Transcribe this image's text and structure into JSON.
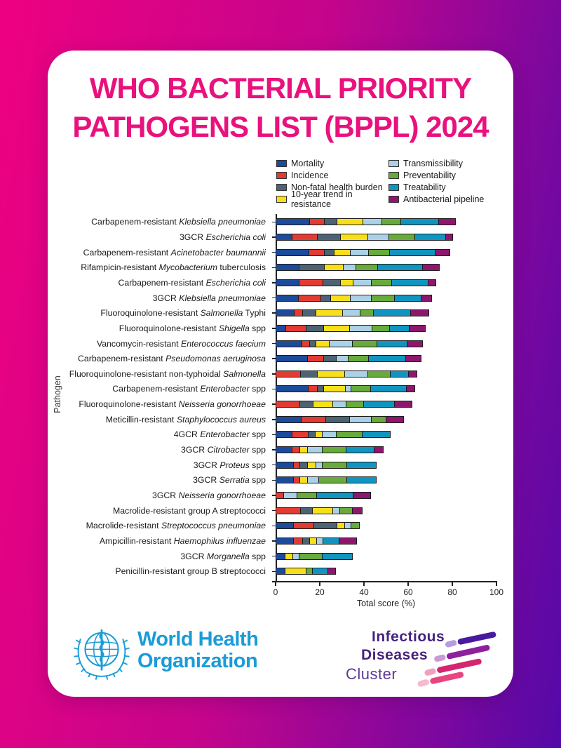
{
  "title": {
    "line1": "WHO BACTERIAL PRIORITY",
    "line2": "PATHOGENS LIST (BPPL) 2024"
  },
  "theme": {
    "background_gradient": [
      "#ee0181",
      "#5409a8"
    ],
    "title_color": "#e9117d",
    "who_blue": "#1a9cd8",
    "idc_purple": "#46227e",
    "segment_outline": "#1c1c1c"
  },
  "chart_data": {
    "type": "stacked-bar-horizontal",
    "title": "",
    "xlabel": "Total score (%)",
    "ylabel": "Pathogen",
    "xlim": [
      0,
      100
    ],
    "xticks": [
      0,
      20,
      40,
      60,
      80,
      100
    ],
    "legend_position": "top-right, two columns",
    "grid": false,
    "series": [
      {
        "name": "Mortality",
        "color": "#1c4b9c",
        "values": [
          15.5,
          7.7,
          15.1,
          10.9,
          10.9,
          10.5,
          8.6,
          4.9,
          12.0,
          14.7,
          0,
          14.9,
          0,
          11.7,
          7.5,
          7.7,
          8.3,
          8.3,
          0,
          0,
          8.3,
          8.3,
          4.5,
          4.5
        ]
      },
      {
        "name": "Incidence",
        "color": "#e23b33",
        "values": [
          7.0,
          11.7,
          7.4,
          0,
          10.9,
          10.6,
          4.2,
          9.3,
          4.0,
          7.4,
          11.5,
          4.5,
          11.2,
          11.5,
          7.6,
          3.8,
          3.2,
          3.2,
          3.8,
          11.5,
          9.6,
          4.3,
          0,
          0
        ]
      },
      {
        "name": "Non-fatal health burden",
        "color": "#4d6374",
        "values": [
          6.0,
          10.9,
          4.9,
          11.6,
          8.5,
          4.6,
          6.3,
          8.3,
          2.9,
          6.1,
          7.9,
          3.1,
          6.4,
          11.0,
          3.5,
          0,
          3.6,
          0,
          0,
          5.7,
          10.6,
          3.6,
          0,
          0
        ]
      },
      {
        "name": "10-year trend in resistance",
        "color": "#f7e01a",
        "values": [
          12.3,
          12.5,
          7.4,
          8.8,
          6.0,
          9.1,
          12.2,
          12.2,
          6.6,
          0,
          12.7,
          10.2,
          9.2,
          0,
          3.5,
          3.6,
          4.3,
          3.6,
          0,
          9.6,
          3.9,
          3.5,
          3.8,
          9.9
        ]
      },
      {
        "name": "Transmissibility",
        "color": "#aad1e6",
        "values": [
          8.8,
          10.0,
          8.7,
          6.3,
          8.5,
          10.0,
          8.5,
          10.4,
          10.6,
          5.8,
          10.9,
          2.9,
          6.3,
          10.1,
          6.8,
          7.0,
          3.1,
          5.6,
          6.4,
          3.5,
          3.2,
          3.2,
          3.2,
          0
        ]
      },
      {
        "name": "Preventability",
        "color": "#68ab3c",
        "values": [
          8.7,
          12.1,
          9.7,
          10.1,
          9.5,
          10.9,
          6.1,
          8.1,
          11.6,
          9.5,
          10.2,
          9.2,
          8.3,
          7.1,
          12.0,
          11.3,
          11.5,
          13.1,
          9.2,
          6.0,
          4.2,
          0,
          10.6,
          3.2
        ]
      },
      {
        "name": "Treatability",
        "color": "#1095c1",
        "values": [
          17.5,
          14.0,
          21.0,
          20.6,
          16.9,
          12.3,
          17.2,
          9.3,
          14.0,
          17.1,
          8.8,
          16.5,
          14.3,
          0,
          13.0,
          13.1,
          13.5,
          13.4,
          16.9,
          0,
          0,
          7.7,
          14.2,
          7.1
        ]
      },
      {
        "name": "Antibacterial pipeline",
        "color": "#8e176d",
        "values": [
          8.0,
          3.5,
          7.2,
          8.0,
          3.8,
          5.1,
          8.8,
          7.7,
          7.2,
          7.4,
          3.9,
          4.0,
          8.1,
          8.2,
          0,
          4.2,
          0,
          0,
          8.3,
          4.6,
          0,
          8.1,
          0,
          4.0
        ]
      }
    ],
    "totals": [
      83.8,
      82.4,
      81.4,
      76.3,
      75.0,
      73.1,
      71.9,
      70.2,
      68.9,
      68.0,
      65.9,
      65.3,
      63.8,
      59.6,
      53.9,
      50.7,
      47.5,
      47.2,
      44.6,
      40.9,
      39.8,
      38.7,
      36.3,
      28.7
    ],
    "categories": [
      [
        [
          "Carbapenem-resistant ",
          0
        ],
        [
          "Klebsiella pneumoniae",
          1
        ]
      ],
      [
        [
          "3GCR ",
          0
        ],
        [
          "Escherichia coli",
          1
        ]
      ],
      [
        [
          "Carbapenem-resistant ",
          0
        ],
        [
          "Acinetobacter baumannii",
          1
        ]
      ],
      [
        [
          "Rifampicin-resistant ",
          0
        ],
        [
          "Mycobacterium",
          1
        ],
        [
          " tuberculosis",
          0
        ]
      ],
      [
        [
          "Carbapenem-resistant ",
          0
        ],
        [
          "Escherichia coli",
          1
        ]
      ],
      [
        [
          "3GCR ",
          0
        ],
        [
          "Klebsiella pneumoniae",
          1
        ]
      ],
      [
        [
          "Fluoroquinolone-resistant ",
          0
        ],
        [
          "Salmonella",
          1
        ],
        [
          " Typhi",
          0
        ]
      ],
      [
        [
          "Fluoroquinolone-resistant ",
          0
        ],
        [
          "Shigella",
          1
        ],
        [
          " spp",
          0
        ]
      ],
      [
        [
          "Vancomycin-resistant ",
          0
        ],
        [
          "Enterococcus faecium",
          1
        ]
      ],
      [
        [
          "Carbapenem-resistant ",
          0
        ],
        [
          "Pseudomonas aeruginosa",
          1
        ]
      ],
      [
        [
          "Fluoroquinolone-resistant non-typhoidal ",
          0
        ],
        [
          "Salmonella",
          1
        ]
      ],
      [
        [
          "Carbapenem-resistant ",
          0
        ],
        [
          "Enterobacter",
          1
        ],
        [
          " spp",
          0
        ]
      ],
      [
        [
          "Fluoroquinolone-resistant ",
          0
        ],
        [
          "Neisseria gonorrhoeae",
          1
        ]
      ],
      [
        [
          "Meticillin-resistant ",
          0
        ],
        [
          "Staphylococcus aureus",
          1
        ]
      ],
      [
        [
          "4GCR ",
          0
        ],
        [
          "Enterobacter",
          1
        ],
        [
          " spp",
          0
        ]
      ],
      [
        [
          "3GCR ",
          0
        ],
        [
          "Citrobacter",
          1
        ],
        [
          " spp",
          0
        ]
      ],
      [
        [
          "3GCR ",
          0
        ],
        [
          "Proteus",
          1
        ],
        [
          " spp",
          0
        ]
      ],
      [
        [
          "3GCR ",
          0
        ],
        [
          "Serratia",
          1
        ],
        [
          " spp",
          0
        ]
      ],
      [
        [
          "3GCR ",
          0
        ],
        [
          "Neisseria gonorrhoeae",
          1
        ]
      ],
      [
        [
          "Macrolide-resistant group A streptococci",
          0
        ]
      ],
      [
        [
          "Macrolide-resistant ",
          0
        ],
        [
          "Streptococcus pneumoniae",
          1
        ]
      ],
      [
        [
          "Ampicillin-resistant ",
          0
        ],
        [
          "Haemophilus influenzae",
          1
        ]
      ],
      [
        [
          "3GCR ",
          0
        ],
        [
          "Morganella",
          1
        ],
        [
          " spp",
          0
        ]
      ],
      [
        [
          "Penicillin-resistant group B streptococci",
          0
        ]
      ]
    ]
  },
  "footer": {
    "who": {
      "line1": "World Health",
      "line2": "Organization"
    },
    "idc": {
      "line1": "Infectious",
      "line2": "Diseases",
      "line3": "Cluster"
    }
  }
}
